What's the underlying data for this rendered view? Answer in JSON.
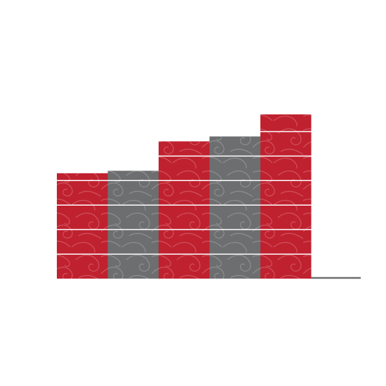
{
  "chart_data": {
    "type": "bar",
    "title": "",
    "xlabel": "",
    "ylabel": "",
    "categories": [
      "",
      "",
      "",
      "",
      ""
    ],
    "values": [
      4.3,
      4.4,
      5.6,
      5.8,
      6.7
    ],
    "ylim": [
      0,
      6.7
    ],
    "gridlines": [
      1,
      2,
      3,
      4,
      5,
      6
    ],
    "grid": true,
    "legend": "none",
    "colors": [
      "#c0212f",
      "#6d6e70",
      "#c0212f",
      "#6d6e70",
      "#c0212f"
    ],
    "pattern": "swirl-waves"
  }
}
